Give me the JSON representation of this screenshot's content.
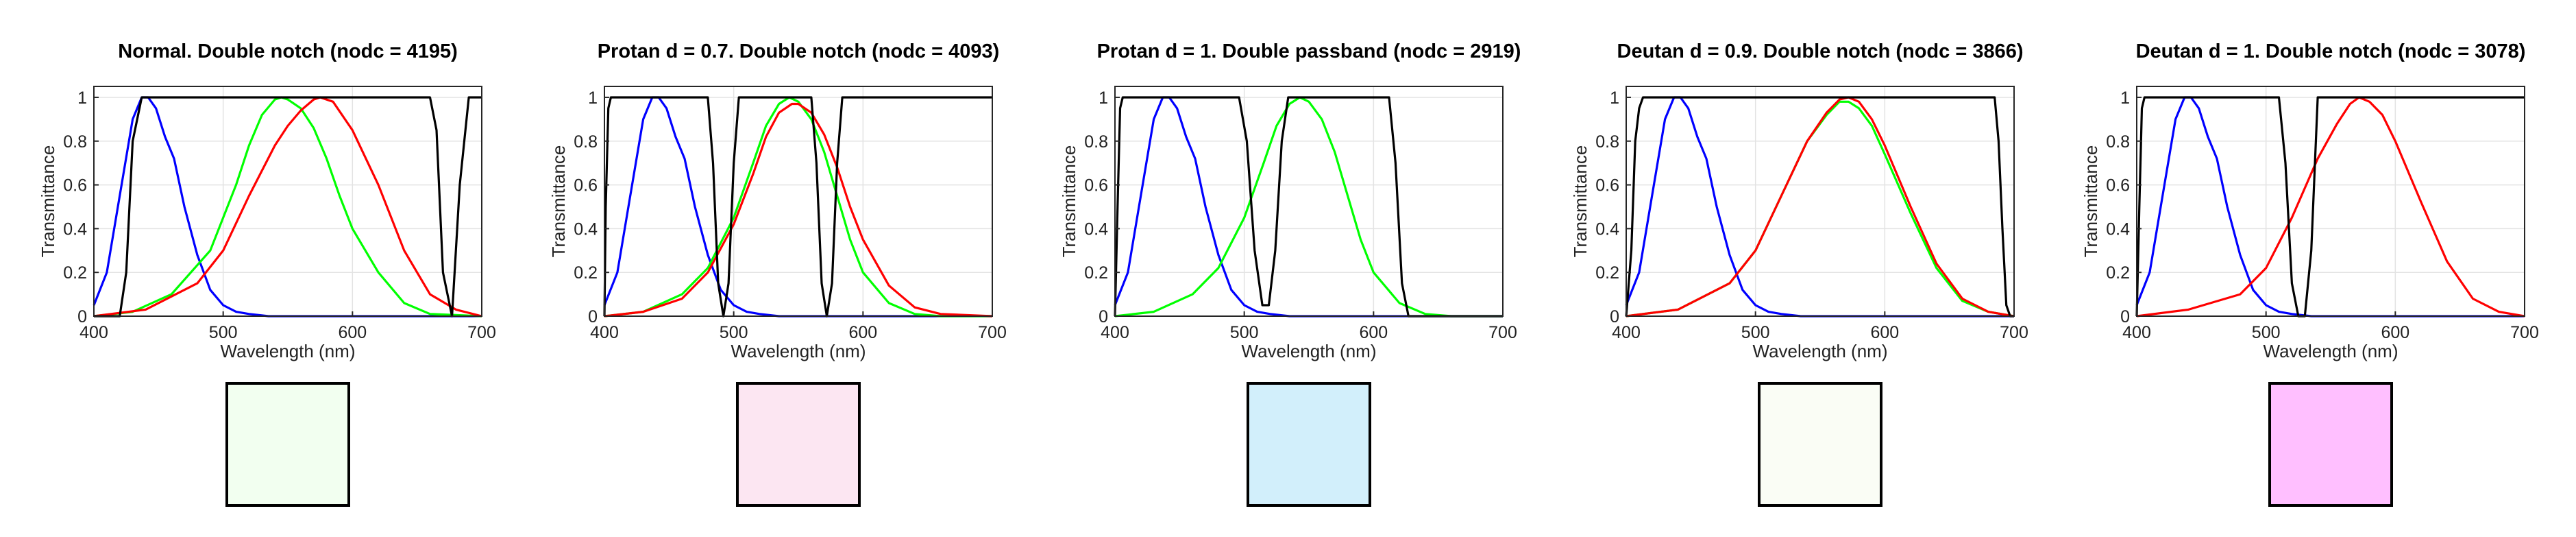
{
  "chart_data": [
    {
      "type": "line",
      "title": "Normal. Double notch (nodc = 4195)",
      "xlabel": "Wavelength (nm)",
      "ylabel": "Transmittance",
      "xlim": [
        400,
        700
      ],
      "ylim": [
        0,
        1.05
      ],
      "xticks": [
        "400",
        "500",
        "600",
        "700"
      ],
      "yticks": [
        "0",
        "0.2",
        "0.4",
        "0.6",
        "0.8",
        "1"
      ],
      "grid": true,
      "filter": {
        "color": "#000000",
        "x": [
          400,
          420,
          425,
          430,
          437,
          660,
          665,
          670,
          677,
          683,
          690,
          700
        ],
        "y": [
          0,
          0,
          0.2,
          0.8,
          1,
          1,
          0.85,
          0.2,
          0,
          0.6,
          1,
          1
        ]
      },
      "series": [
        {
          "color": "#0000ff",
          "x": [
            400,
            410,
            420,
            430,
            437,
            442,
            448,
            455,
            462,
            470,
            480,
            490,
            500,
            510,
            520,
            535,
            700
          ],
          "y": [
            0.05,
            0.2,
            0.55,
            0.9,
            1.0,
            1.0,
            0.95,
            0.82,
            0.72,
            0.5,
            0.28,
            0.12,
            0.05,
            0.02,
            0.01,
            0,
            0
          ]
        },
        {
          "color": "#00ff00",
          "x": [
            400,
            430,
            460,
            490,
            510,
            520,
            530,
            540,
            545,
            550,
            560,
            570,
            580,
            590,
            600,
            620,
            640,
            660,
            700
          ],
          "y": [
            0,
            0.02,
            0.1,
            0.3,
            0.6,
            0.78,
            0.92,
            0.99,
            1.0,
            0.99,
            0.95,
            0.86,
            0.72,
            0.55,
            0.4,
            0.2,
            0.06,
            0.01,
            0
          ]
        },
        {
          "color": "#ff0000",
          "x": [
            400,
            440,
            480,
            500,
            520,
            540,
            550,
            560,
            570,
            575,
            585,
            600,
            620,
            640,
            660,
            680,
            700
          ],
          "y": [
            0,
            0.03,
            0.15,
            0.3,
            0.55,
            0.78,
            0.87,
            0.94,
            0.99,
            1.0,
            0.98,
            0.85,
            0.6,
            0.3,
            0.1,
            0.03,
            0
          ]
        }
      ],
      "swatch": "#f2fff0"
    },
    {
      "type": "line",
      "title": "Protan d = 0.7. Double notch (nodc = 4093)",
      "xlabel": "Wavelength (nm)",
      "ylabel": "Transmittance",
      "xlim": [
        400,
        700
      ],
      "ylim": [
        0,
        1.05
      ],
      "xticks": [
        "400",
        "500",
        "600",
        "700"
      ],
      "yticks": [
        "0",
        "0.2",
        "0.4",
        "0.6",
        "0.8",
        "1"
      ],
      "grid": true,
      "filter": {
        "color": "#000000",
        "x": [
          400,
          401,
          403,
          405,
          480,
          484,
          488,
          492,
          496,
          500,
          504,
          560,
          564,
          568,
          572,
          576,
          580,
          584,
          700
        ],
        "y": [
          0,
          0.5,
          0.95,
          1,
          1,
          0.7,
          0.15,
          0,
          0.15,
          0.7,
          1,
          1,
          0.7,
          0.15,
          0,
          0.15,
          0.7,
          1,
          1
        ]
      },
      "series": [
        {
          "color": "#0000ff",
          "x": [
            400,
            410,
            420,
            430,
            437,
            442,
            448,
            455,
            462,
            470,
            480,
            490,
            500,
            510,
            520,
            535,
            700
          ],
          "y": [
            0.05,
            0.2,
            0.55,
            0.9,
            1.0,
            1.0,
            0.95,
            0.82,
            0.72,
            0.5,
            0.28,
            0.12,
            0.05,
            0.02,
            0.01,
            0,
            0
          ]
        },
        {
          "color": "#00ff00",
          "x": [
            400,
            430,
            460,
            480,
            500,
            515,
            525,
            535,
            543,
            550,
            560,
            570,
            580,
            590,
            600,
            620,
            640,
            660,
            700
          ],
          "y": [
            0,
            0.02,
            0.1,
            0.22,
            0.45,
            0.7,
            0.87,
            0.97,
            1.0,
            0.98,
            0.9,
            0.75,
            0.55,
            0.35,
            0.2,
            0.06,
            0.01,
            0,
            0
          ]
        },
        {
          "color": "#ff0000",
          "x": [
            400,
            430,
            460,
            480,
            500,
            515,
            525,
            535,
            545,
            550,
            560,
            570,
            580,
            590,
            600,
            620,
            640,
            660,
            700
          ],
          "y": [
            0,
            0.02,
            0.08,
            0.2,
            0.42,
            0.65,
            0.82,
            0.93,
            0.97,
            0.97,
            0.93,
            0.83,
            0.68,
            0.5,
            0.35,
            0.14,
            0.04,
            0.01,
            0
          ]
        }
      ],
      "swatch": "#fce6f2"
    },
    {
      "type": "line",
      "title": "Protan d = 1. Double passband (nodc = 2919)",
      "xlabel": "Wavelength (nm)",
      "ylabel": "Transmittance",
      "xlim": [
        400,
        700
      ],
      "ylim": [
        0,
        1.05
      ],
      "xticks": [
        "400",
        "500",
        "600",
        "700"
      ],
      "yticks": [
        "0",
        "0.2",
        "0.4",
        "0.6",
        "0.8",
        "1"
      ],
      "grid": true,
      "filter": {
        "color": "#000000",
        "x": [
          400,
          402,
          404,
          406,
          496,
          502,
          508,
          514,
          519,
          524,
          529,
          534,
          612,
          617,
          622,
          627,
          700
        ],
        "y": [
          0,
          0.5,
          0.95,
          1,
          1,
          0.8,
          0.3,
          0.05,
          0.05,
          0.3,
          0.8,
          1,
          1,
          0.7,
          0.15,
          0,
          0
        ]
      },
      "series": [
        {
          "color": "#0000ff",
          "x": [
            400,
            410,
            420,
            430,
            437,
            442,
            448,
            455,
            462,
            470,
            480,
            490,
            500,
            510,
            520,
            535,
            700
          ],
          "y": [
            0.05,
            0.2,
            0.55,
            0.9,
            1.0,
            1.0,
            0.95,
            0.82,
            0.72,
            0.5,
            0.28,
            0.12,
            0.05,
            0.02,
            0.01,
            0,
            0
          ]
        },
        {
          "color": "#00ff00",
          "x": [
            400,
            430,
            460,
            480,
            500,
            515,
            525,
            535,
            543,
            550,
            560,
            570,
            580,
            590,
            600,
            620,
            640,
            660,
            700
          ],
          "y": [
            0,
            0.02,
            0.1,
            0.22,
            0.45,
            0.7,
            0.87,
            0.97,
            1.0,
            0.98,
            0.9,
            0.75,
            0.55,
            0.35,
            0.2,
            0.06,
            0.01,
            0,
            0
          ]
        }
      ],
      "swatch": "#d2effb"
    },
    {
      "type": "line",
      "title": "Deutan d = 0.9. Double notch (nodc = 3866)",
      "xlabel": "Wavelength (nm)",
      "ylabel": "Transmittance",
      "xlim": [
        400,
        700
      ],
      "ylim": [
        0,
        1.05
      ],
      "xticks": [
        "400",
        "500",
        "600",
        "700"
      ],
      "yticks": [
        "0",
        "0.2",
        "0.4",
        "0.6",
        "0.8",
        "1"
      ],
      "grid": true,
      "filter": {
        "color": "#000000",
        "x": [
          400,
          404,
          407,
          410,
          413,
          416,
          685,
          688,
          691,
          694,
          697,
          700
        ],
        "y": [
          0,
          0.3,
          0.8,
          0.95,
          1,
          1,
          1,
          0.8,
          0.4,
          0.05,
          0,
          0
        ]
      },
      "series": [
        {
          "color": "#0000ff",
          "x": [
            400,
            410,
            420,
            430,
            437,
            442,
            448,
            455,
            462,
            470,
            480,
            490,
            500,
            510,
            520,
            535,
            700
          ],
          "y": [
            0.05,
            0.2,
            0.55,
            0.9,
            1.0,
            1.0,
            0.95,
            0.82,
            0.72,
            0.5,
            0.28,
            0.12,
            0.05,
            0.02,
            0.01,
            0,
            0
          ]
        },
        {
          "color": "#00ff00",
          "x": [
            400,
            440,
            480,
            500,
            520,
            540,
            555,
            565,
            572,
            580,
            590,
            600,
            620,
            640,
            660,
            680,
            700
          ],
          "y": [
            0,
            0.03,
            0.15,
            0.3,
            0.55,
            0.8,
            0.92,
            0.98,
            0.98,
            0.95,
            0.87,
            0.74,
            0.47,
            0.22,
            0.07,
            0.02,
            0
          ]
        },
        {
          "color": "#ff0000",
          "x": [
            400,
            440,
            480,
            500,
            520,
            540,
            555,
            565,
            572,
            580,
            590,
            600,
            620,
            640,
            660,
            680,
            700
          ],
          "y": [
            0,
            0.03,
            0.15,
            0.3,
            0.55,
            0.8,
            0.93,
            0.99,
            1.0,
            0.98,
            0.9,
            0.78,
            0.5,
            0.24,
            0.08,
            0.02,
            0
          ]
        }
      ],
      "swatch": "#fafdf5"
    },
    {
      "type": "line",
      "title": "Deutan d = 1. Double notch (nodc = 3078)",
      "xlabel": "Wavelength (nm)",
      "ylabel": "Transmittance",
      "xlim": [
        400,
        700
      ],
      "ylim": [
        0,
        1.05
      ],
      "xticks": [
        "400",
        "500",
        "600",
        "700"
      ],
      "yticks": [
        "0",
        "0.2",
        "0.4",
        "0.6",
        "0.8",
        "1"
      ],
      "grid": true,
      "filter": {
        "color": "#000000",
        "x": [
          400,
          402,
          404,
          406,
          510,
          515,
          520,
          525,
          530,
          535,
          540,
          700
        ],
        "y": [
          0,
          0.5,
          0.95,
          1,
          1,
          0.7,
          0.15,
          0,
          0,
          0.3,
          1,
          1
        ]
      },
      "series": [
        {
          "color": "#0000ff",
          "x": [
            400,
            410,
            420,
            430,
            437,
            442,
            448,
            455,
            462,
            470,
            480,
            490,
            500,
            510,
            520,
            535,
            700
          ],
          "y": [
            0.05,
            0.2,
            0.55,
            0.9,
            1.0,
            1.0,
            0.95,
            0.82,
            0.72,
            0.5,
            0.28,
            0.12,
            0.05,
            0.02,
            0.01,
            0,
            0
          ]
        },
        {
          "color": "#ff0000",
          "x": [
            400,
            440,
            480,
            500,
            520,
            540,
            555,
            565,
            572,
            580,
            590,
            600,
            620,
            640,
            660,
            680,
            700
          ],
          "y": [
            0,
            0.03,
            0.1,
            0.22,
            0.45,
            0.72,
            0.88,
            0.97,
            1.0,
            0.98,
            0.92,
            0.8,
            0.52,
            0.25,
            0.08,
            0.02,
            0
          ]
        }
      ],
      "swatch": "#ffbfff"
    }
  ]
}
